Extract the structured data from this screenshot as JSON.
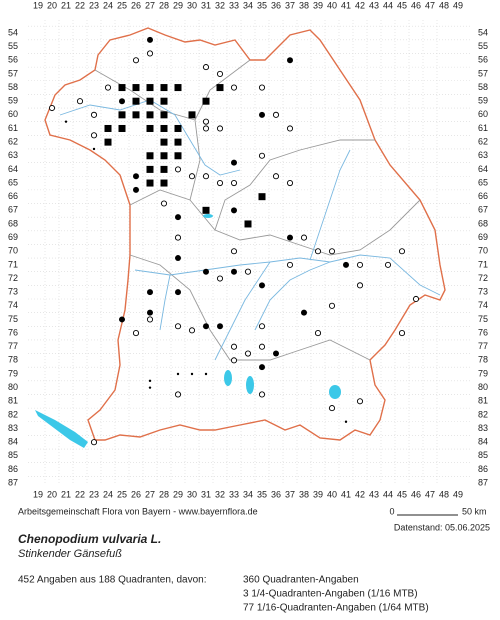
{
  "map": {
    "x_labels": [
      19,
      20,
      21,
      22,
      23,
      24,
      25,
      26,
      27,
      28,
      29,
      30,
      31,
      32,
      33,
      34,
      35,
      36,
      37,
      38,
      39,
      40,
      41,
      42,
      43,
      44,
      45,
      46,
      47,
      48,
      49
    ],
    "y_labels": [
      54,
      55,
      56,
      57,
      58,
      59,
      60,
      61,
      62,
      63,
      64,
      65,
      66,
      67,
      68,
      69,
      70,
      71,
      72,
      73,
      74,
      75,
      76,
      77,
      78,
      79,
      80,
      81,
      82,
      83,
      84,
      85,
      86,
      87
    ],
    "points": [
      {
        "x": 25,
        "y": 58,
        "kind": "square"
      },
      {
        "x": 26,
        "y": 58,
        "kind": "square"
      },
      {
        "x": 27,
        "y": 58,
        "kind": "square"
      },
      {
        "x": 28,
        "y": 58,
        "kind": "square"
      },
      {
        "x": 26,
        "y": 59,
        "kind": "square"
      },
      {
        "x": 27,
        "y": 59,
        "kind": "square"
      },
      {
        "x": 28,
        "y": 59,
        "kind": "square"
      },
      {
        "x": 29,
        "y": 58,
        "kind": "square"
      },
      {
        "x": 27,
        "y": 60,
        "kind": "square"
      },
      {
        "x": 28,
        "y": 60,
        "kind": "square"
      },
      {
        "x": 26,
        "y": 60,
        "kind": "square"
      },
      {
        "x": 25,
        "y": 61,
        "kind": "square"
      },
      {
        "x": 24,
        "y": 61,
        "kind": "square"
      },
      {
        "x": 27,
        "y": 61,
        "kind": "square"
      },
      {
        "x": 28,
        "y": 62,
        "kind": "square"
      },
      {
        "x": 29,
        "y": 62,
        "kind": "square"
      },
      {
        "x": 27,
        "y": 63,
        "kind": "square"
      },
      {
        "x": 28,
        "y": 63,
        "kind": "square"
      },
      {
        "x": 29,
        "y": 63,
        "kind": "square"
      },
      {
        "x": 27,
        "y": 64,
        "kind": "square"
      },
      {
        "x": 28,
        "y": 64,
        "kind": "square"
      },
      {
        "x": 27,
        "y": 65,
        "kind": "square"
      },
      {
        "x": 28,
        "y": 65,
        "kind": "square"
      },
      {
        "x": 24,
        "y": 62,
        "kind": "square"
      },
      {
        "x": 30,
        "y": 60,
        "kind": "square"
      },
      {
        "x": 31,
        "y": 59,
        "kind": "square"
      },
      {
        "x": 32,
        "y": 58,
        "kind": "square"
      },
      {
        "x": 31,
        "y": 67,
        "kind": "square"
      },
      {
        "x": 34,
        "y": 68,
        "kind": "square"
      },
      {
        "x": 35,
        "y": 66,
        "kind": "square"
      },
      {
        "x": 25,
        "y": 60,
        "kind": "square"
      },
      {
        "x": 29,
        "y": 61,
        "kind": "square"
      },
      {
        "x": 28,
        "y": 61,
        "kind": "square"
      },
      {
        "x": 27,
        "y": 54.5,
        "kind": "circle"
      },
      {
        "x": 26,
        "y": 64.5,
        "kind": "circle"
      },
      {
        "x": 33,
        "y": 63.5,
        "kind": "circle"
      },
      {
        "x": 26,
        "y": 65.5,
        "kind": "circle"
      },
      {
        "x": 29,
        "y": 67.5,
        "kind": "circle"
      },
      {
        "x": 33,
        "y": 67,
        "kind": "circle"
      },
      {
        "x": 29,
        "y": 70.5,
        "kind": "circle"
      },
      {
        "x": 33,
        "y": 71.5,
        "kind": "circle"
      },
      {
        "x": 31,
        "y": 71.5,
        "kind": "circle"
      },
      {
        "x": 37,
        "y": 69,
        "kind": "circle"
      },
      {
        "x": 41,
        "y": 71,
        "kind": "circle"
      },
      {
        "x": 27,
        "y": 73,
        "kind": "circle"
      },
      {
        "x": 25,
        "y": 75,
        "kind": "circle"
      },
      {
        "x": 29,
        "y": 73,
        "kind": "circle"
      },
      {
        "x": 35,
        "y": 72.5,
        "kind": "circle"
      },
      {
        "x": 27,
        "y": 74.5,
        "kind": "circle"
      },
      {
        "x": 31,
        "y": 75.5,
        "kind": "circle"
      },
      {
        "x": 32,
        "y": 75.5,
        "kind": "circle"
      },
      {
        "x": 38,
        "y": 74.5,
        "kind": "circle"
      },
      {
        "x": 35,
        "y": 78.5,
        "kind": "circle"
      },
      {
        "x": 36,
        "y": 77.5,
        "kind": "circle"
      },
      {
        "x": 25,
        "y": 59,
        "kind": "circle"
      },
      {
        "x": 35,
        "y": 60,
        "kind": "circle"
      },
      {
        "x": 37,
        "y": 56,
        "kind": "circle"
      },
      {
        "x": 20,
        "y": 59.5,
        "kind": "open"
      },
      {
        "x": 22,
        "y": 59,
        "kind": "open"
      },
      {
        "x": 23,
        "y": 60,
        "kind": "open"
      },
      {
        "x": 24,
        "y": 58,
        "kind": "open"
      },
      {
        "x": 26,
        "y": 56,
        "kind": "open"
      },
      {
        "x": 27,
        "y": 55.5,
        "kind": "open"
      },
      {
        "x": 31,
        "y": 56.5,
        "kind": "open"
      },
      {
        "x": 32,
        "y": 57,
        "kind": "open"
      },
      {
        "x": 33,
        "y": 58,
        "kind": "open"
      },
      {
        "x": 35,
        "y": 58,
        "kind": "open"
      },
      {
        "x": 36,
        "y": 60,
        "kind": "open"
      },
      {
        "x": 37,
        "y": 61,
        "kind": "open"
      },
      {
        "x": 35,
        "y": 63,
        "kind": "open"
      },
      {
        "x": 36,
        "y": 64.5,
        "kind": "open"
      },
      {
        "x": 32,
        "y": 65,
        "kind": "open"
      },
      {
        "x": 31,
        "y": 64.5,
        "kind": "open"
      },
      {
        "x": 30,
        "y": 64.5,
        "kind": "open"
      },
      {
        "x": 33,
        "y": 65,
        "kind": "open"
      },
      {
        "x": 37,
        "y": 65,
        "kind": "open"
      },
      {
        "x": 31,
        "y": 61,
        "kind": "open"
      },
      {
        "x": 31,
        "y": 60.5,
        "kind": "open"
      },
      {
        "x": 32,
        "y": 61,
        "kind": "open"
      },
      {
        "x": 29,
        "y": 64,
        "kind": "open"
      },
      {
        "x": 28,
        "y": 66.5,
        "kind": "open"
      },
      {
        "x": 33,
        "y": 70,
        "kind": "open"
      },
      {
        "x": 38,
        "y": 69,
        "kind": "open"
      },
      {
        "x": 39,
        "y": 70,
        "kind": "open"
      },
      {
        "x": 40,
        "y": 70,
        "kind": "open"
      },
      {
        "x": 42,
        "y": 71,
        "kind": "open"
      },
      {
        "x": 44,
        "y": 71,
        "kind": "open"
      },
      {
        "x": 45,
        "y": 70,
        "kind": "open"
      },
      {
        "x": 32,
        "y": 72,
        "kind": "open"
      },
      {
        "x": 34,
        "y": 71.5,
        "kind": "open"
      },
      {
        "x": 37,
        "y": 71,
        "kind": "open"
      },
      {
        "x": 42,
        "y": 72.5,
        "kind": "open"
      },
      {
        "x": 46,
        "y": 73.5,
        "kind": "open"
      },
      {
        "x": 40,
        "y": 74,
        "kind": "open"
      },
      {
        "x": 39,
        "y": 76,
        "kind": "open"
      },
      {
        "x": 45,
        "y": 76,
        "kind": "open"
      },
      {
        "x": 35,
        "y": 75.5,
        "kind": "open"
      },
      {
        "x": 29,
        "y": 75.5,
        "kind": "open"
      },
      {
        "x": 26,
        "y": 76,
        "kind": "open"
      },
      {
        "x": 27,
        "y": 75,
        "kind": "open"
      },
      {
        "x": 33,
        "y": 77,
        "kind": "open"
      },
      {
        "x": 34,
        "y": 77.5,
        "kind": "open"
      },
      {
        "x": 35,
        "y": 77,
        "kind": "open"
      },
      {
        "x": 33,
        "y": 78,
        "kind": "open"
      },
      {
        "x": 29,
        "y": 80.5,
        "kind": "open"
      },
      {
        "x": 35,
        "y": 80.5,
        "kind": "open"
      },
      {
        "x": 40,
        "y": 81.5,
        "kind": "open"
      },
      {
        "x": 42,
        "y": 81,
        "kind": "open"
      },
      {
        "x": 23,
        "y": 84,
        "kind": "open"
      },
      {
        "x": 29,
        "y": 69,
        "kind": "open"
      },
      {
        "x": 23,
        "y": 61.5,
        "kind": "open"
      },
      {
        "x": 30,
        "y": 75.8,
        "kind": "open"
      },
      {
        "x": 30,
        "y": 79,
        "kind": "dot"
      },
      {
        "x": 29,
        "y": 79,
        "kind": "dot"
      },
      {
        "x": 31,
        "y": 79,
        "kind": "dot"
      },
      {
        "x": 27,
        "y": 79.5,
        "kind": "dot"
      },
      {
        "x": 27,
        "y": 80,
        "kind": "dot"
      },
      {
        "x": 41,
        "y": 82.5,
        "kind": "dot"
      },
      {
        "x": 21,
        "y": 60.5,
        "kind": "dot"
      },
      {
        "x": 23,
        "y": 62.5,
        "kind": "dot"
      }
    ]
  },
  "footer": {
    "credit": "Arbeitsgemeinschaft Flora von Bayern - www.bayernflora.de",
    "scale_start": "0",
    "scale_end": "50 km",
    "date": "Datenstand: 05.06.2025",
    "name": "Chenopodium vulvaria L.",
    "common": "Stinkender Gänsefuß",
    "summary": "452 Angaben aus 188 Quadranten, davon:",
    "counts": [
      "360 Quadranten-Angaben",
      "3 1/4-Quadranten-Angaben (1/16 MTB)",
      "77 1/16-Quadranten-Angaben (1/64 MTB)"
    ]
  }
}
